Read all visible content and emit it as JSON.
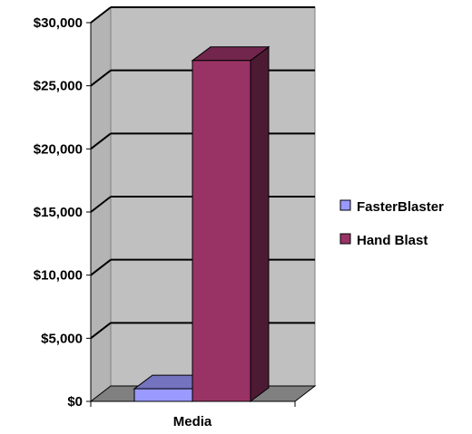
{
  "chart_data": {
    "type": "bar",
    "style": "3d-clustered-column",
    "categories": [
      "Media"
    ],
    "series": [
      {
        "name": "FasterBlaster",
        "values": [
          1000
        ],
        "color": "#9999ff"
      },
      {
        "name": "Hand Blast",
        "values": [
          27000
        ],
        "color": "#993366"
      }
    ],
    "ylim": [
      0,
      30000
    ],
    "yticks": [
      0,
      5000,
      10000,
      15000,
      20000,
      25000,
      30000
    ],
    "ytick_labels": [
      "$0",
      "$5,000",
      "$10,000",
      "$15,000",
      "$20,000",
      "$25,000",
      "$30,000"
    ],
    "grid": true,
    "legend": "right",
    "wall_color": "#c0c0c0",
    "floor_color": "#808080"
  }
}
